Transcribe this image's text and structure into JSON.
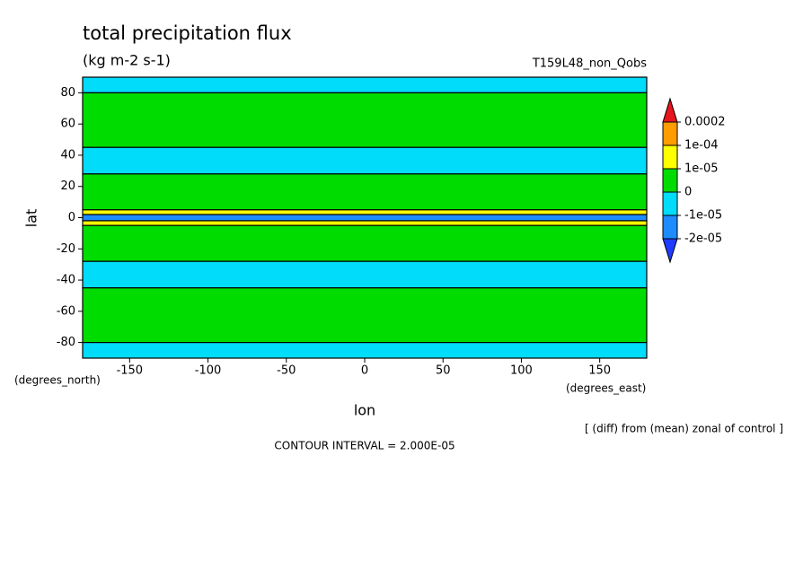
{
  "chart_data": {
    "type": "contour",
    "title": "total precipitation flux",
    "subtitle": "(kg m-2 s-1)",
    "run_label": "T159L48_non_Qobs",
    "x_label": "lon",
    "y_label": "lat",
    "x_unit": "(degrees_east)",
    "y_unit": "(degrees_north)",
    "note": "[ (diff) from (mean) zonal of control ]",
    "contour_interval": "CONTOUR INTERVAL = 2.000E-05",
    "xlim": [
      -180,
      180
    ],
    "xticks": [
      -150,
      -100,
      -50,
      0,
      50,
      100,
      150
    ],
    "ylim": [
      -90,
      90
    ],
    "yticks": [
      -80,
      -60,
      -40,
      -20,
      0,
      20,
      40,
      60,
      80
    ],
    "colorbar": {
      "levels": [
        {
          "value": 0.0002,
          "label": "0.0002"
        },
        {
          "value": 0.0001,
          "label": "1e-04"
        },
        {
          "value": 1e-05,
          "label": "1e-05"
        },
        0,
        {
          "value": -1e-05,
          "label": "-1e-05"
        },
        {
          "value": -2e-05,
          "label": "-2e-05"
        }
      ],
      "colors": [
        "#e8141e",
        "#ff9c00",
        "#ffff00",
        "#00dc00",
        "#00dcfa",
        "#1e8cff",
        "#1e3cff"
      ]
    },
    "bands": [
      {
        "lat": [
          80,
          90
        ],
        "value": -5e-06,
        "color": "#00dcfa"
      },
      {
        "lat": [
          45,
          80
        ],
        "value": 5e-06,
        "color": "#00dc00"
      },
      {
        "lat": [
          28,
          45
        ],
        "value": -5e-06,
        "color": "#00dcfa"
      },
      {
        "lat": [
          5,
          28
        ],
        "value": 5e-06,
        "color": "#00dc00"
      },
      {
        "lat": [
          2,
          5
        ],
        "value": 5e-05,
        "color": "#ffff00"
      },
      {
        "lat": [
          -2,
          2
        ],
        "value": -1.5e-05,
        "color": "#1e8cff"
      },
      {
        "lat": [
          -5,
          -2
        ],
        "value": 5e-05,
        "color": "#ffff00"
      },
      {
        "lat": [
          -28,
          -5
        ],
        "value": 5e-06,
        "color": "#00dc00"
      },
      {
        "lat": [
          -45,
          -28
        ],
        "value": -5e-06,
        "color": "#00dcfa"
      },
      {
        "lat": [
          -80,
          -45
        ],
        "value": 5e-06,
        "color": "#00dc00"
      },
      {
        "lat": [
          -90,
          -80
        ],
        "value": -5e-06,
        "color": "#00dcfa"
      }
    ]
  }
}
